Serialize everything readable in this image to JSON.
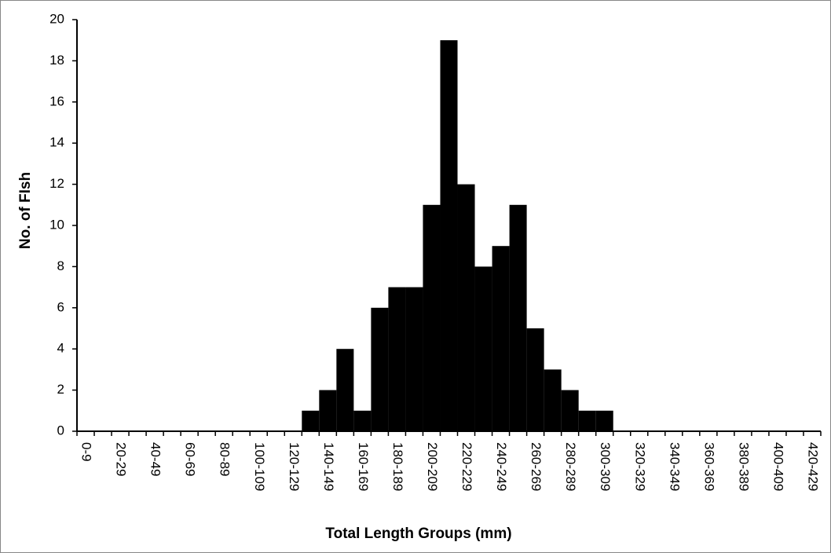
{
  "chart_data": {
    "type": "bar",
    "x_label": "Total Length Groups (mm)",
    "y_label": "No. of FIsh",
    "categories": [
      "0-9",
      null,
      "20-29",
      null,
      "40-49",
      null,
      "60-69",
      null,
      "80-89",
      null,
      "100-109",
      null,
      "120-129",
      null,
      "140-149",
      null,
      "160-169",
      null,
      "180-189",
      null,
      "200-209",
      null,
      "220-229",
      null,
      "240-249",
      null,
      "260-269",
      null,
      "280-289",
      null,
      "300-309",
      null,
      "320-329",
      null,
      "340-349",
      null,
      "360-369",
      null,
      "380-389",
      null,
      "400-409",
      null,
      "420-429"
    ],
    "values": [
      0,
      0,
      0,
      0,
      0,
      0,
      0,
      0,
      0,
      0,
      0,
      0,
      0,
      1,
      2,
      4,
      1,
      6,
      7,
      7,
      11,
      19,
      12,
      8,
      9,
      11,
      5,
      3,
      2,
      1,
      1,
      0,
      0,
      0,
      0,
      0,
      0,
      0,
      0,
      0,
      0,
      0,
      0
    ],
    "color": "#000000",
    "ylim": [
      0,
      20
    ],
    "yticks": [
      0,
      2,
      4,
      6,
      8,
      10,
      12,
      14,
      16,
      18,
      20
    ]
  }
}
